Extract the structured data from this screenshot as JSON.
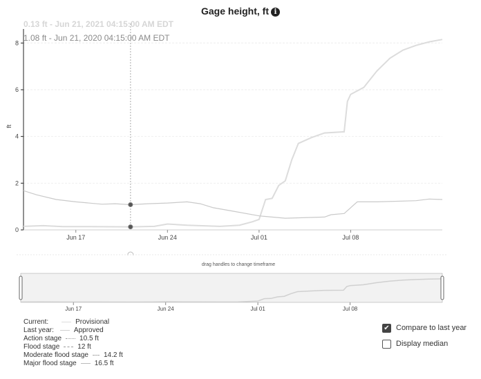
{
  "chart_data": {
    "type": "line",
    "title": "Gage height, ft",
    "ylabel": "ft",
    "ylim": [
      0,
      8.6
    ],
    "yticks": [
      0,
      2,
      4,
      6,
      8
    ],
    "x_start": "2021-06-13T00:00",
    "x_end": "2021-07-15T00:00",
    "xticks": [
      {
        "label": "Jun 17",
        "date": "2021-06-17"
      },
      {
        "label": "Jun 24",
        "date": "2021-06-24"
      },
      {
        "label": "Jul 01",
        "date": "2021-07-01"
      },
      {
        "label": "Jul 08",
        "date": "2021-07-08"
      }
    ],
    "series": [
      {
        "name": "Current",
        "color": "#dcdcdc",
        "points": [
          [
            "2021-06-13T00:00",
            0.15
          ],
          [
            "2021-06-14T12:00",
            0.18
          ],
          [
            "2021-06-16T00:00",
            0.14
          ],
          [
            "2021-06-18T00:00",
            0.14
          ],
          [
            "2021-06-21T04:15",
            0.13
          ],
          [
            "2021-06-23T00:00",
            0.15
          ],
          [
            "2021-06-24T00:00",
            0.25
          ],
          [
            "2021-06-25T12:00",
            0.2
          ],
          [
            "2021-06-28T00:00",
            0.15
          ],
          [
            "2021-06-29T12:00",
            0.2
          ],
          [
            "2021-06-30T12:00",
            0.35
          ],
          [
            "2021-07-01T00:00",
            0.45
          ],
          [
            "2021-07-01T12:00",
            1.3
          ],
          [
            "2021-07-02T00:00",
            1.35
          ],
          [
            "2021-07-02T12:00",
            1.9
          ],
          [
            "2021-07-03T00:00",
            2.1
          ],
          [
            "2021-07-03T12:00",
            3.0
          ],
          [
            "2021-07-04T00:00",
            3.7
          ],
          [
            "2021-07-05T00:00",
            3.95
          ],
          [
            "2021-07-06T00:00",
            4.15
          ],
          [
            "2021-07-07T12:00",
            4.2
          ],
          [
            "2021-07-07T18:00",
            5.5
          ],
          [
            "2021-07-08T00:00",
            5.8
          ],
          [
            "2021-07-09T00:00",
            6.1
          ],
          [
            "2021-07-10T00:00",
            6.8
          ],
          [
            "2021-07-11T00:00",
            7.35
          ],
          [
            "2021-07-12T00:00",
            7.7
          ],
          [
            "2021-07-13T00:00",
            7.9
          ],
          [
            "2021-07-14T00:00",
            8.05
          ],
          [
            "2021-07-15T00:00",
            8.15
          ]
        ]
      },
      {
        "name": "Last year",
        "color": "#c9c9c9",
        "points": [
          [
            "2021-06-13T00:00",
            1.68
          ],
          [
            "2021-06-14T00:00",
            1.5
          ],
          [
            "2021-06-15T12:00",
            1.3
          ],
          [
            "2021-06-17T00:00",
            1.2
          ],
          [
            "2021-06-19T00:00",
            1.1
          ],
          [
            "2021-06-20T00:00",
            1.12
          ],
          [
            "2021-06-21T04:15",
            1.08
          ],
          [
            "2021-06-22T12:00",
            1.12
          ],
          [
            "2021-06-24T00:00",
            1.15
          ],
          [
            "2021-06-25T12:00",
            1.2
          ],
          [
            "2021-06-26T12:00",
            1.12
          ],
          [
            "2021-06-27T12:00",
            0.95
          ],
          [
            "2021-06-29T00:00",
            0.8
          ],
          [
            "2021-07-01T00:00",
            0.6
          ],
          [
            "2021-07-03T00:00",
            0.5
          ],
          [
            "2021-07-06T00:00",
            0.55
          ],
          [
            "2021-07-06T12:00",
            0.65
          ],
          [
            "2021-07-07T12:00",
            0.7
          ],
          [
            "2021-07-08T00:00",
            0.95
          ],
          [
            "2021-07-08T12:00",
            1.2
          ],
          [
            "2021-07-10T00:00",
            1.2
          ],
          [
            "2021-07-13T00:00",
            1.25
          ],
          [
            "2021-07-14T00:00",
            1.32
          ],
          [
            "2021-07-15T00:00",
            1.3
          ]
        ]
      }
    ],
    "crosshair_date": "2021-06-21T04:15",
    "tooltip": {
      "current": "0.13 ft - Jun 21, 2021 04:15:00 AM EDT",
      "last_year": "1.08 ft - Jun 21, 2020 04:15:00 AM EDT"
    },
    "brush_note": "drag handles to change timeframe",
    "grid": true
  },
  "legend": [
    {
      "label": "Current:",
      "value": "Provisional"
    },
    {
      "label": "Last year:",
      "value": "Approved"
    },
    {
      "label": "Action stage",
      "value": "10.5 ft"
    },
    {
      "label": "Flood stage",
      "value": "12 ft"
    },
    {
      "label": "Moderate flood stage",
      "value": "14.2 ft"
    },
    {
      "label": "Major flood stage",
      "value": "16.5 ft"
    }
  ],
  "controls": {
    "compare_label": "Compare to last year",
    "compare_checked": true,
    "median_label": "Display median",
    "median_checked": false
  },
  "icons": {
    "info": "info-icon",
    "check": "checkmark-icon"
  }
}
